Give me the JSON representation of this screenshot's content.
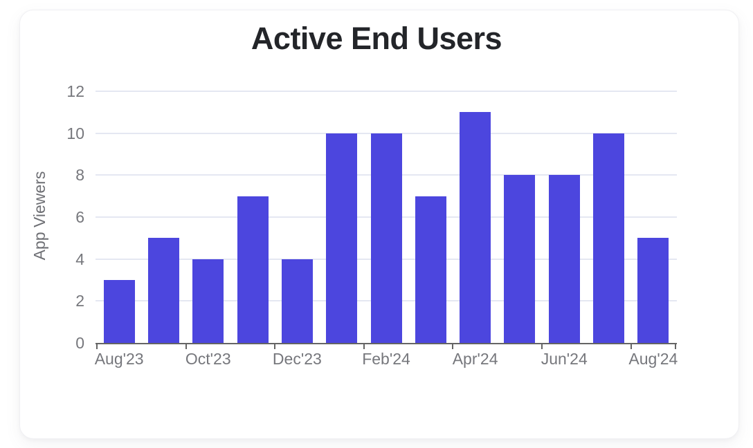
{
  "card": {
    "background": "#FFFFFF",
    "border_color": "#F0F0F3"
  },
  "chart_data": {
    "type": "bar",
    "title": "Active End Users",
    "xlabel": "",
    "ylabel": "App Viewers",
    "values": [
      3,
      5,
      4,
      7,
      4,
      10,
      10,
      7,
      11,
      8,
      8,
      10,
      5
    ],
    "x_tick_labels": [
      "Aug'23",
      "Oct'23",
      "Dec'23",
      "Feb'24",
      "Apr'24",
      "Jun'24",
      "Aug'24"
    ],
    "x_tick_bar_indices": [
      0,
      2,
      4,
      6,
      8,
      10,
      12
    ],
    "y_ticks": [
      0,
      2,
      4,
      6,
      8,
      10,
      12
    ],
    "ylim": [
      0,
      12
    ],
    "grid": "horizontal-only",
    "legend": "none"
  },
  "colors": {
    "bar": "#4C46DE",
    "gridline": "#E4E7F2",
    "axis": "#646464",
    "tick_label": "#76777C",
    "axis_title": "#6E6F74",
    "title": "#232529"
  }
}
